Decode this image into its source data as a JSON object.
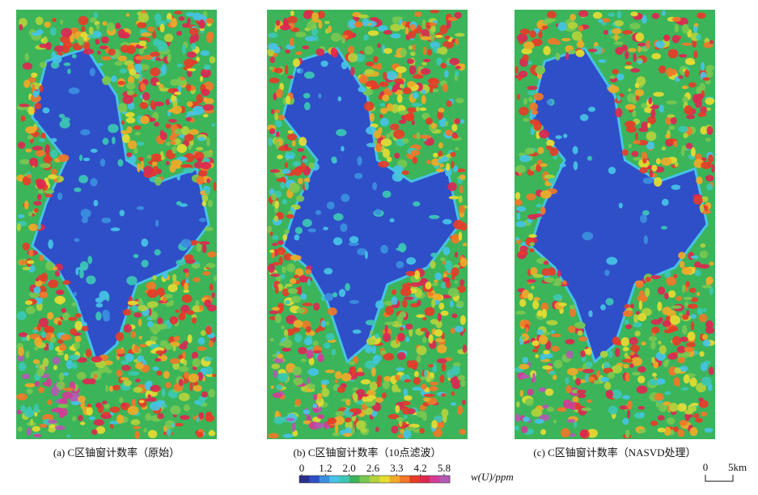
{
  "panels": [
    {
      "caption": "(a) C区铀窗计数率（原始）"
    },
    {
      "caption": "(b) C区铀窗计数率（10点滤波）"
    },
    {
      "caption": "(c) C区铀窗计数率（NASVD处理）"
    }
  ],
  "legend": {
    "ticks": [
      0,
      1.2,
      {
        "value": 2,
        "label": "2.0"
      },
      2.6,
      3.3,
      4.2,
      5.8
    ],
    "colors": [
      "#28308c",
      "#2f4fc8",
      "#3c8fe0",
      "#46c3e6",
      "#3cc8b4",
      "#3cb45a",
      "#78c850",
      "#b4d23c",
      "#e6dc32",
      "#f0aa28",
      "#f07828",
      "#e63c28",
      "#dc2850",
      "#d23c96",
      "#b45ab4"
    ],
    "unit": "w(U)/ppm"
  },
  "scale_bar": {
    "start": "0",
    "end": "5km"
  }
}
